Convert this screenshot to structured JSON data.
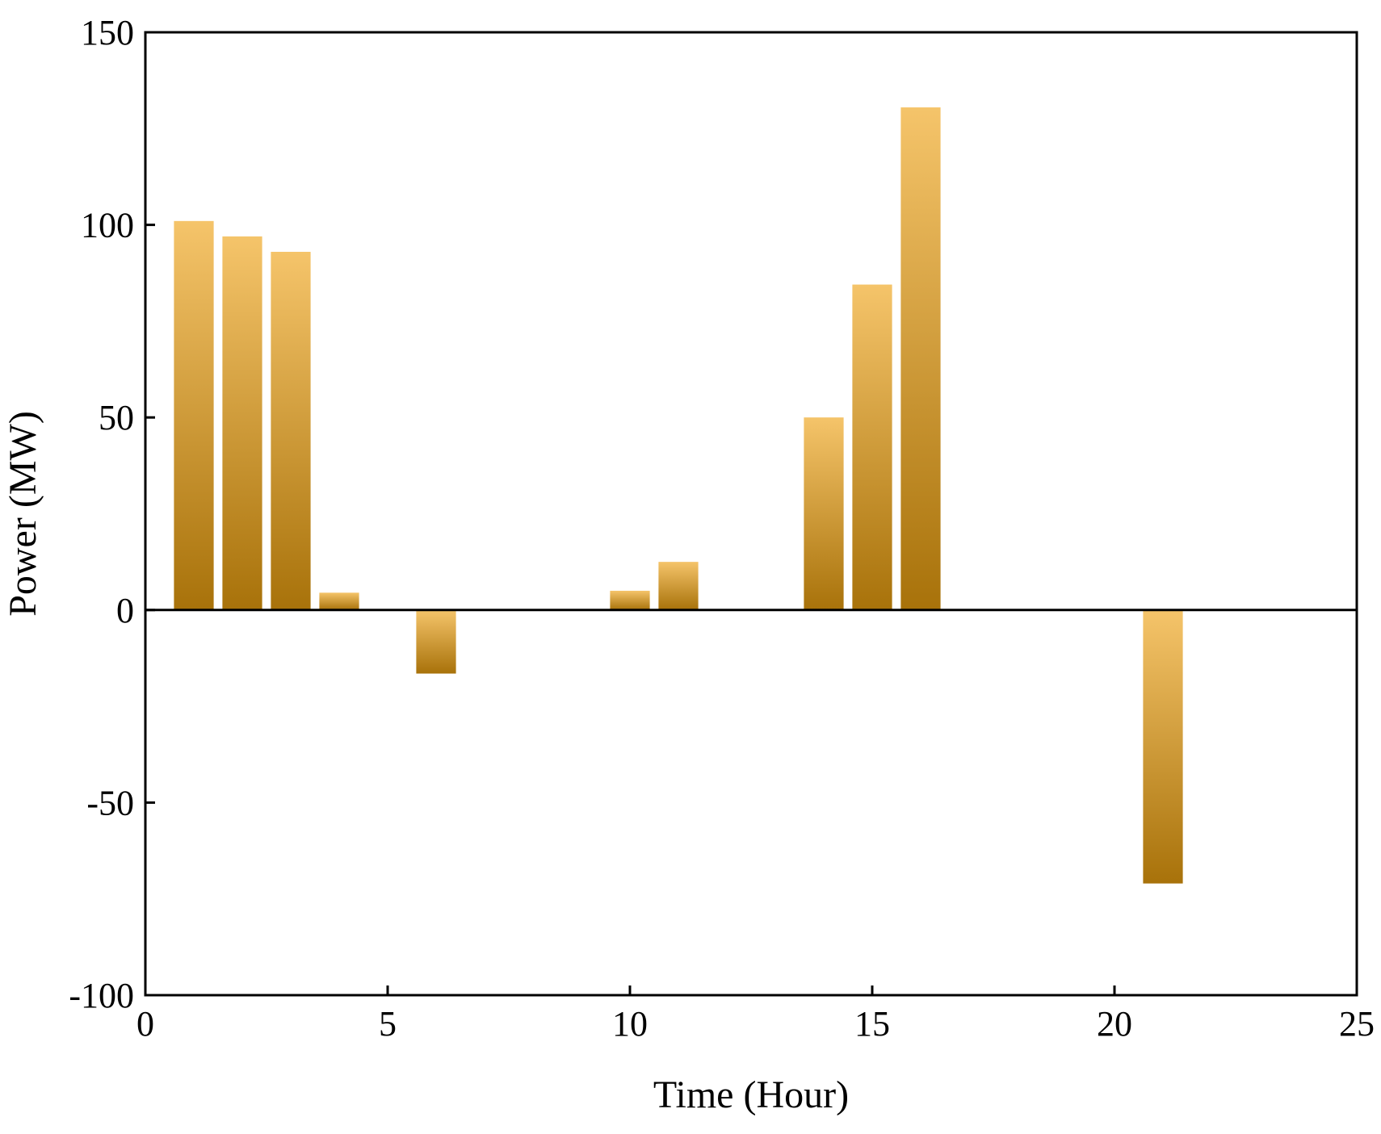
{
  "chart_data": {
    "type": "bar",
    "title": "",
    "xlabel": "Time (Hour)",
    "ylabel": "Power (MW)",
    "xlim": [
      0,
      25
    ],
    "ylim": [
      -100,
      150
    ],
    "xticks": [
      0,
      5,
      10,
      15,
      20,
      25
    ],
    "yticks": [
      -100,
      -50,
      0,
      50,
      100,
      150
    ],
    "x": [
      1,
      2,
      3,
      4,
      6,
      10,
      11,
      14,
      15,
      16,
      21
    ],
    "values": [
      101,
      97,
      93,
      4.5,
      -16.5,
      5,
      12.5,
      50,
      84.5,
      130.5,
      -71
    ],
    "grid": false,
    "bar_color_top": "#F5C46A",
    "bar_color_bottom": "#A8720A"
  }
}
